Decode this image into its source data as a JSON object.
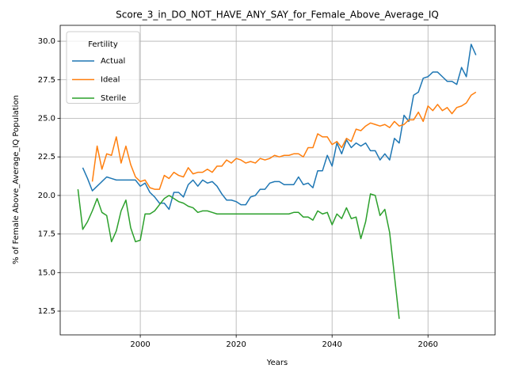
{
  "chart_data": {
    "type": "line",
    "title": "Score_3_in_DO_NOT_HAVE_ANY_SAY_for_Female_Above_Average_IQ",
    "x_label": "Years",
    "y_label": "% of Female Above_Average_IQ Population",
    "legend_title": "Fertility",
    "legend_position": "upper left",
    "grid": true,
    "xlim": [
      1983.3,
      2074.0
    ],
    "ylim": [
      10.96,
      31.03
    ],
    "xticks": [
      2000,
      2020,
      2040,
      2060
    ],
    "yticks": [
      12.5,
      {
        "value": 15.0,
        "label": "15.0"
      },
      17.5,
      {
        "value": 20.0,
        "label": "20.0"
      },
      22.5,
      {
        "value": 25.0,
        "label": "25.0"
      },
      27.5,
      {
        "value": 30.0,
        "label": "30.0"
      }
    ],
    "x": [
      1987,
      1988,
      1989,
      1990,
      1991,
      1992,
      1993,
      1994,
      1995,
      1996,
      1997,
      1998,
      1999,
      2000,
      2001,
      2002,
      2003,
      2004,
      2005,
      2006,
      2007,
      2008,
      2009,
      2010,
      2011,
      2012,
      2013,
      2014,
      2015,
      2016,
      2017,
      2018,
      2019,
      2020,
      2021,
      2022,
      2023,
      2024,
      2025,
      2026,
      2027,
      2028,
      2029,
      2030,
      2031,
      2032,
      2033,
      2034,
      2035,
      2036,
      2037,
      2038,
      2039,
      2040,
      2041,
      2042,
      2043,
      2044,
      2045,
      2046,
      2047,
      2048,
      2049,
      2050,
      2051,
      2052,
      2053,
      2054,
      2055,
      2056,
      2057,
      2058,
      2059,
      2060,
      2061,
      2062,
      2063,
      2064,
      2065,
      2066,
      2067,
      2068,
      2069,
      2070
    ],
    "series": [
      {
        "name": "Actual",
        "color": "#1f77b4",
        "values": [
          null,
          21.8,
          21.1,
          20.3,
          20.6,
          20.9,
          21.2,
          21.1,
          21.0,
          21.0,
          21.0,
          21.0,
          21.0,
          20.6,
          20.8,
          20.2,
          19.9,
          19.5,
          19.5,
          19.1,
          20.2,
          20.2,
          19.9,
          20.7,
          21.0,
          20.6,
          21.0,
          20.8,
          20.9,
          20.6,
          20.1,
          19.7,
          19.7,
          19.6,
          19.4,
          19.4,
          19.9,
          20.0,
          20.4,
          20.4,
          20.8,
          20.9,
          20.9,
          20.7,
          20.7,
          20.7,
          21.2,
          20.7,
          20.8,
          20.5,
          21.6,
          21.6,
          22.6,
          21.9,
          23.4,
          22.7,
          23.6,
          23.1,
          23.4,
          23.2,
          23.4,
          22.9,
          22.9,
          22.3,
          22.7,
          22.3,
          23.7,
          23.4,
          25.2,
          24.8,
          26.5,
          26.7,
          27.6,
          27.7,
          28.0,
          28.0,
          27.7,
          27.4,
          27.4,
          27.2,
          28.3,
          27.7,
          29.8,
          29.1
        ]
      },
      {
        "name": "Ideal",
        "color": "#ff7f0e",
        "values": [
          null,
          null,
          null,
          20.9,
          23.2,
          21.7,
          22.7,
          22.6,
          23.8,
          22.1,
          23.2,
          22.0,
          21.2,
          20.9,
          21.0,
          20.5,
          20.4,
          20.4,
          21.3,
          21.1,
          21.5,
          21.3,
          21.2,
          21.8,
          21.4,
          21.5,
          21.5,
          21.7,
          21.5,
          21.9,
          21.9,
          22.3,
          22.1,
          22.4,
          22.3,
          22.1,
          22.2,
          22.1,
          22.4,
          22.3,
          22.4,
          22.6,
          22.5,
          22.6,
          22.6,
          22.7,
          22.7,
          22.5,
          23.1,
          23.1,
          24.0,
          23.8,
          23.8,
          23.3,
          23.5,
          23.1,
          23.7,
          23.5,
          24.3,
          24.2,
          24.5,
          24.7,
          24.6,
          24.5,
          24.6,
          24.4,
          24.8,
          24.5,
          24.6,
          24.9,
          24.9,
          25.4,
          24.8,
          25.8,
          25.5,
          25.9,
          25.5,
          25.7,
          25.3,
          25.7,
          25.8,
          26.0,
          26.5,
          26.7
        ]
      },
      {
        "name": "Sterile",
        "color": "#2ca02c",
        "values": [
          20.4,
          17.8,
          18.3,
          19.0,
          19.8,
          18.9,
          18.7,
          17.0,
          17.7,
          19.0,
          19.7,
          17.9,
          17.0,
          17.1,
          18.8,
          18.8,
          19.0,
          19.4,
          19.8,
          20.0,
          19.8,
          19.6,
          19.5,
          19.3,
          19.2,
          18.9,
          19.0,
          19.0,
          18.9,
          18.8,
          18.8,
          18.8,
          18.8,
          18.8,
          18.8,
          18.8,
          18.8,
          18.8,
          18.8,
          18.8,
          18.8,
          18.8,
          18.8,
          18.8,
          18.8,
          18.9,
          18.9,
          18.6,
          18.6,
          18.4,
          19.0,
          18.8,
          18.9,
          18.1,
          18.8,
          18.5,
          19.2,
          18.5,
          18.6,
          17.2,
          18.3,
          20.1,
          20.0,
          18.7,
          19.1,
          17.6,
          14.8,
          12.0,
          null,
          null,
          null,
          null,
          null,
          null,
          null,
          null,
          null,
          null,
          null,
          null,
          null,
          null,
          null,
          null
        ]
      }
    ]
  }
}
